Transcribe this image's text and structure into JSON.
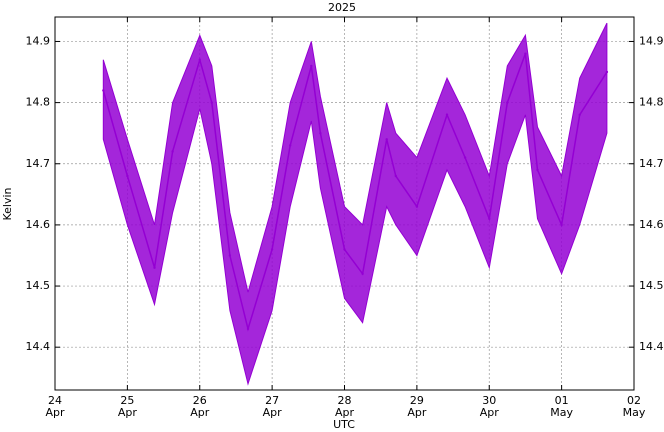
{
  "chart_data": {
    "type": "line",
    "title": "2025",
    "xlabel": "UTC",
    "ylabel": "Kelvin",
    "ylim": [
      14.33,
      14.94
    ],
    "xlim": [
      "2025-04-24T00:00",
      "2025-05-02T00:00"
    ],
    "grid": true,
    "line_color": "#9400d3",
    "x_ticks": [
      {
        "day": "24",
        "month": "Apr"
      },
      {
        "day": "25",
        "month": "Apr"
      },
      {
        "day": "26",
        "month": "Apr"
      },
      {
        "day": "27",
        "month": "Apr"
      },
      {
        "day": "28",
        "month": "Apr"
      },
      {
        "day": "29",
        "month": "Apr"
      },
      {
        "day": "30",
        "month": "Apr"
      },
      {
        "day": "01",
        "month": "May"
      },
      {
        "day": "02",
        "month": "May"
      }
    ],
    "y_ticks": [
      "14.4",
      "14.5",
      "14.6",
      "14.7",
      "14.8",
      "14.9"
    ],
    "series": [
      {
        "x": [
          "2025-04-24T16:00",
          "2025-04-25T00:00",
          "2025-04-25T09:00",
          "2025-04-25T15:00",
          "2025-04-26T00:00",
          "2025-04-26T04:00",
          "2025-04-26T10:00",
          "2025-04-26T16:00",
          "2025-04-27T00:00",
          "2025-04-27T06:00",
          "2025-04-27T13:00",
          "2025-04-27T16:00",
          "2025-04-28T00:00",
          "2025-04-28T06:00",
          "2025-04-28T14:00",
          "2025-04-28T17:00",
          "2025-04-29T00:00",
          "2025-04-29T10:00",
          "2025-04-29T16:00",
          "2025-04-30T00:00",
          "2025-04-30T06:00",
          "2025-04-30T12:00",
          "2025-04-30T16:00",
          "2025-05-01T00:00",
          "2025-05-01T06:00",
          "2025-05-01T15:00"
        ],
        "y": [
          14.82,
          14.68,
          14.53,
          14.72,
          14.87,
          14.8,
          14.55,
          14.43,
          14.56,
          14.73,
          14.86,
          14.75,
          14.56,
          14.52,
          14.74,
          14.68,
          14.63,
          14.78,
          14.71,
          14.61,
          14.8,
          14.88,
          14.69,
          14.6,
          14.78,
          14.85
        ],
        "y_low": [
          14.74,
          14.6,
          14.47,
          14.62,
          14.79,
          14.7,
          14.46,
          14.34,
          14.46,
          14.63,
          14.77,
          14.66,
          14.48,
          14.44,
          14.63,
          14.6,
          14.55,
          14.69,
          14.63,
          14.53,
          14.7,
          14.78,
          14.61,
          14.52,
          14.6,
          14.75
        ],
        "y_high": [
          14.87,
          14.74,
          14.6,
          14.8,
          14.91,
          14.86,
          14.62,
          14.49,
          14.63,
          14.8,
          14.9,
          14.81,
          14.63,
          14.6,
          14.8,
          14.75,
          14.71,
          14.84,
          14.78,
          14.68,
          14.86,
          14.91,
          14.76,
          14.68,
          14.84,
          14.93
        ]
      }
    ]
  }
}
